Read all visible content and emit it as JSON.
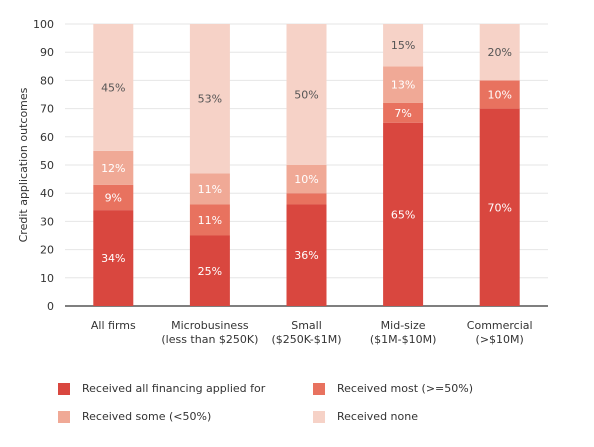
{
  "chart_data": {
    "type": "bar",
    "stacked": true,
    "ylabel": "Credit application outcomes",
    "xlabel": "",
    "ylim": [
      0,
      100
    ],
    "yticks": [
      0,
      10,
      20,
      30,
      40,
      50,
      60,
      70,
      80,
      90,
      100
    ],
    "grid": true,
    "legend_position": "bottom",
    "categories": [
      [
        "All firms"
      ],
      [
        "Microbusiness",
        "(less than $250K)"
      ],
      [
        "Small",
        "($250K-$1M)"
      ],
      [
        "Mid-size",
        "($1M-$10M)"
      ],
      [
        "Commercial",
        "(>$10M)"
      ]
    ],
    "series": [
      {
        "name": "Received all financing applied for",
        "color": "#d9473f",
        "label_color": "#ffffff",
        "values": [
          34,
          25,
          36,
          65,
          70
        ]
      },
      {
        "name": "Received most (>=50%)",
        "color": "#e8725f",
        "label_color": "#ffffff",
        "values": [
          9,
          11,
          4,
          7,
          10
        ]
      },
      {
        "name": "Received some (<50%)",
        "color": "#f0a996",
        "label_color": "#ffffff",
        "values": [
          12,
          11,
          10,
          13,
          0
        ]
      },
      {
        "name": "Received none",
        "color": "#f6d2c7",
        "label_color": "#555555",
        "values": [
          45,
          53,
          50,
          15,
          20
        ]
      }
    ],
    "data_labels": [
      [
        "34%",
        "9%",
        "12%",
        "45%"
      ],
      [
        "25%",
        "11%",
        "11%",
        "53%"
      ],
      [
        "36%",
        "",
        "10%",
        "50%"
      ],
      [
        "65%",
        "7%",
        "13%",
        "15%"
      ],
      [
        "70%",
        "10%",
        "",
        "20%"
      ]
    ]
  }
}
